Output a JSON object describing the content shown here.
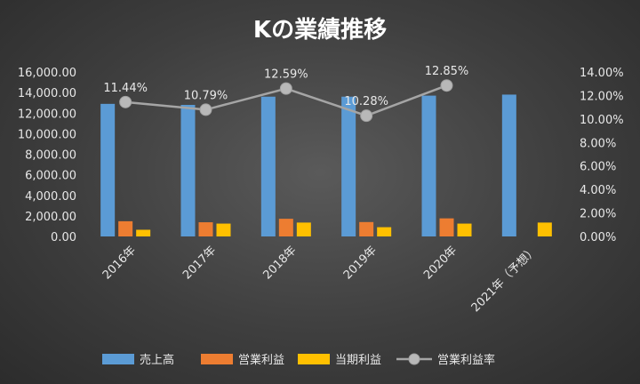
{
  "chart_data": {
    "type": "bar",
    "title": "Kの業績推移",
    "categories": [
      "2016年",
      "2017年",
      "2018年",
      "2019年",
      "2020年",
      "2021年（予想）"
    ],
    "series": [
      {
        "name": "売上高",
        "axis": "left",
        "kind": "bar",
        "color": "#5b9bd5",
        "values": [
          12900,
          12800,
          13600,
          13600,
          13700,
          13800
        ]
      },
      {
        "name": "営業利益",
        "axis": "left",
        "kind": "bar",
        "color": "#ed7d31",
        "values": [
          1480,
          1380,
          1720,
          1400,
          1760,
          null
        ]
      },
      {
        "name": "当期利益",
        "axis": "left",
        "kind": "bar",
        "color": "#ffc000",
        "values": [
          650,
          1250,
          1350,
          900,
          1250,
          1350
        ]
      },
      {
        "name": "営業利益率",
        "axis": "right",
        "kind": "line",
        "color": "#a5a5a5",
        "values": [
          11.44,
          10.79,
          12.59,
          10.28,
          12.85,
          null
        ],
        "labels": [
          "11.44%",
          "10.79%",
          "12.59%",
          "10.28%",
          "12.85%",
          ""
        ]
      }
    ],
    "y_left": {
      "min": 0,
      "max": 16000,
      "ticks": [
        "0.00",
        "2,000.00",
        "4,000.00",
        "6,000.00",
        "8,000.00",
        "10,000.00",
        "12,000.00",
        "14,000.00",
        "16,000.00"
      ]
    },
    "y_right": {
      "min": 0,
      "max": 14,
      "ticks": [
        "0.00%",
        "2.00%",
        "4.00%",
        "6.00%",
        "8.00%",
        "10.00%",
        "12.00%",
        "14.00%"
      ]
    },
    "grid": false,
    "legend": "bottom"
  }
}
